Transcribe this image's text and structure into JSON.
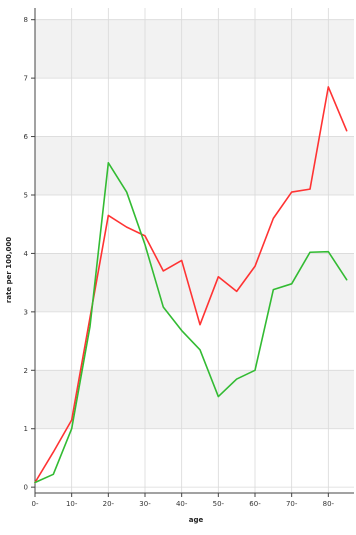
{
  "chart_data": {
    "type": "line",
    "title": "",
    "xlabel": "age",
    "ylabel": "rate per 100,000",
    "xlim": [
      0,
      87
    ],
    "ylim": [
      -0.1,
      8.2
    ],
    "x_ticks": [
      0,
      10,
      20,
      30,
      40,
      50,
      60,
      70,
      80
    ],
    "x_tick_labels": [
      "0-",
      "10-",
      "20-",
      "30-",
      "40-",
      "50-",
      "60-",
      "70-",
      "80-"
    ],
    "y_ticks": [
      0,
      1,
      2,
      3,
      4,
      5,
      6,
      7,
      8
    ],
    "y_tick_labels": [
      "0",
      "1",
      "2",
      "3",
      "4",
      "5",
      "6",
      "7",
      "8"
    ],
    "x": [
      0,
      5,
      10,
      15,
      20,
      25,
      30,
      35,
      40,
      45,
      50,
      55,
      60,
      65,
      70,
      75,
      80,
      85
    ],
    "grid": true,
    "legend": false,
    "series": [
      {
        "color": "#ff3333",
        "values": [
          0.08,
          0.6,
          1.15,
          2.9,
          4.65,
          4.45,
          4.3,
          3.7,
          3.88,
          2.78,
          3.6,
          3.35,
          3.78,
          4.6,
          5.05,
          5.1,
          6.85,
          6.1
        ]
      },
      {
        "color": "#33bb33",
        "values": [
          0.08,
          0.22,
          1.0,
          2.75,
          5.55,
          5.05,
          4.15,
          3.08,
          2.68,
          2.35,
          1.55,
          1.85,
          2.0,
          3.38,
          3.48,
          4.02,
          4.03,
          3.55
        ]
      }
    ]
  },
  "colors": {
    "band_fill": "#f2f2f2",
    "gridline": "#d9d9d9",
    "axis": "#444444",
    "tick_text": "#333333"
  }
}
